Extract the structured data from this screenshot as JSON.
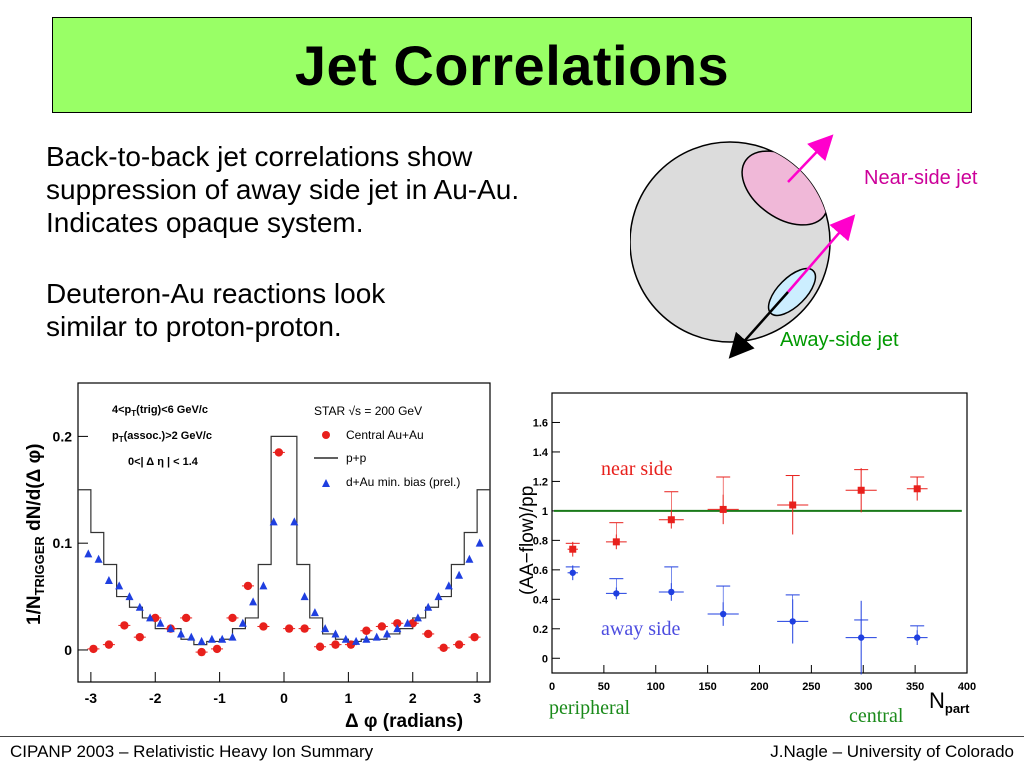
{
  "slide": {
    "title": "Jet Correlations",
    "bullets": [
      [
        "Back-to-back jet correlations show",
        "suppression of away side jet in Au-Au.",
        "Indicates opaque system."
      ],
      [
        "Deuteron-Au reactions look",
        "similar to proton-proton."
      ]
    ],
    "footer_left": "CIPANP 2003 – Relativistic Heavy Ion Summary",
    "footer_right": "J.Nagle – University of Colorado"
  },
  "diagram": {
    "near_label": "Near-side jet",
    "away_label": "Away-side jet",
    "colors": {
      "sphere": "#dcdcdc",
      "near_region": "#f0b8d8",
      "away_region": "#cceeff",
      "arrow": "#ff00cc",
      "near_text": "#cc0099",
      "away_text": "#009900"
    }
  },
  "chart_data": [
    {
      "type": "scatter",
      "title": "",
      "xlabel": "Δ φ (radians)",
      "ylabel": "1/N_TRIGGER dN/d(Δ φ)",
      "xlim": [
        -3.2,
        3.2
      ],
      "ylim": [
        -0.03,
        0.25
      ],
      "xticks": [
        -3,
        -2,
        -1,
        0,
        1,
        2,
        3
      ],
      "yticks": [
        0,
        0.1,
        0.2
      ],
      "ytick_labels": [
        "0",
        "0.1",
        "0.2"
      ],
      "annotations": [
        "4<p_T(trig)<6 GeV/c",
        "p_T(assoc.)>2 GeV/c",
        "0<| Δ η | < 1.4"
      ],
      "legend_header": "STAR √s = 200 GeV",
      "legend_position": "top-right",
      "series": [
        {
          "name": "Central Au+Au",
          "marker": "circle",
          "color": "#e8201c",
          "x": [
            -2.96,
            -2.72,
            -2.48,
            -2.24,
            -2.0,
            -1.76,
            -1.52,
            -1.28,
            -1.04,
            -0.8,
            -0.56,
            -0.32,
            -0.08,
            0.08,
            0.32,
            0.56,
            0.8,
            1.04,
            1.28,
            1.52,
            1.76,
            2.0,
            2.24,
            2.48,
            2.72,
            2.96
          ],
          "y": [
            0.001,
            0.005,
            0.023,
            0.012,
            0.03,
            0.02,
            0.03,
            -0.002,
            0.001,
            0.03,
            0.06,
            0.022,
            0.185,
            0.02,
            0.02,
            0.003,
            0.005,
            0.005,
            0.018,
            0.022,
            0.025,
            0.025,
            0.015,
            0.002,
            0.005,
            0.012
          ]
        },
        {
          "name": "p+p",
          "marker": "step",
          "color": "#333333",
          "x": [
            -3.1,
            -2.9,
            -2.7,
            -2.5,
            -2.3,
            -2.1,
            -1.9,
            -1.7,
            -1.5,
            -1.3,
            -1.1,
            -0.9,
            -0.7,
            -0.5,
            -0.3,
            -0.1,
            0.1,
            0.3,
            0.5,
            0.7,
            0.9,
            1.1,
            1.3,
            1.5,
            1.7,
            1.9,
            2.1,
            2.3,
            2.5,
            2.7,
            2.9,
            3.1
          ],
          "y": [
            0.15,
            0.11,
            0.08,
            0.05,
            0.04,
            0.03,
            0.02,
            0.02,
            0.01,
            0.005,
            0.008,
            0.01,
            0.02,
            0.03,
            0.08,
            0.2,
            0.2,
            0.08,
            0.03,
            0.015,
            0.01,
            0.008,
            0.01,
            0.01,
            0.015,
            0.02,
            0.03,
            0.04,
            0.05,
            0.08,
            0.11,
            0.15
          ]
        },
        {
          "name": "d+Au min. bias (prel.)",
          "marker": "triangle",
          "color": "#1f3fe0",
          "x": [
            -3.04,
            -2.88,
            -2.72,
            -2.56,
            -2.4,
            -2.24,
            -2.08,
            -1.92,
            -1.76,
            -1.6,
            -1.44,
            -1.28,
            -1.12,
            -0.96,
            -0.8,
            -0.64,
            -0.48,
            -0.32,
            -0.16,
            0.16,
            0.32,
            0.48,
            0.64,
            0.8,
            0.96,
            1.12,
            1.28,
            1.44,
            1.6,
            1.76,
            1.92,
            2.08,
            2.24,
            2.4,
            2.56,
            2.72,
            2.88,
            3.04
          ],
          "y": [
            0.09,
            0.085,
            0.065,
            0.06,
            0.05,
            0.04,
            0.03,
            0.025,
            0.02,
            0.015,
            0.012,
            0.008,
            0.01,
            0.01,
            0.012,
            0.025,
            0.045,
            0.06,
            0.12,
            0.12,
            0.05,
            0.035,
            0.02,
            0.015,
            0.01,
            0.008,
            0.01,
            0.012,
            0.015,
            0.02,
            0.025,
            0.03,
            0.04,
            0.05,
            0.06,
            0.07,
            0.085,
            0.1
          ]
        }
      ]
    },
    {
      "type": "scatter",
      "title": "",
      "xlabel": "N_part",
      "ylabel": "(AA−flow)/pp",
      "xlim": [
        0,
        400
      ],
      "ylim": [
        -0.1,
        1.8
      ],
      "xticks": [
        0,
        50,
        100,
        150,
        200,
        250,
        300,
        350,
        400
      ],
      "yticks": [
        0,
        0.2,
        0.4,
        0.6,
        0.8,
        1,
        1.2,
        1.4,
        1.6
      ],
      "ytick_labels": [
        "0",
        "0.2",
        "0.4",
        "0.6",
        "0.8",
        "1",
        "1.2",
        "1.4",
        "1.6"
      ],
      "reference_line": 1.0,
      "annotations": [
        "near side",
        "away side",
        "peripheral",
        "central"
      ],
      "series": [
        {
          "name": "near side",
          "marker": "square",
          "color": "#e8201c",
          "x": [
            20,
            62,
            115,
            165,
            232,
            298,
            352
          ],
          "y": [
            0.74,
            0.79,
            0.94,
            1.01,
            1.04,
            1.14,
            1.15
          ],
          "yerr": [
            0.05,
            0.05,
            0.06,
            0.1,
            0.2,
            0.15,
            0.08
          ],
          "xerr": [
            5,
            10,
            12,
            15,
            15,
            15,
            10
          ],
          "sys_upper": [
            0.78,
            0.92,
            1.13,
            1.23,
            1.24,
            1.28,
            1.23
          ]
        },
        {
          "name": "away side",
          "marker": "circle",
          "color": "#1f3fe0",
          "x": [
            20,
            62,
            115,
            165,
            232,
            298,
            352
          ],
          "y": [
            0.58,
            0.44,
            0.45,
            0.3,
            0.25,
            0.14,
            0.14
          ],
          "yerr": [
            0.05,
            0.04,
            0.06,
            0.08,
            0.15,
            0.25,
            0.05
          ],
          "xerr": [
            5,
            10,
            12,
            15,
            15,
            15,
            10
          ],
          "sys_upper": [
            0.62,
            0.54,
            0.62,
            0.49,
            0.43,
            0.26,
            0.22
          ]
        }
      ]
    }
  ]
}
